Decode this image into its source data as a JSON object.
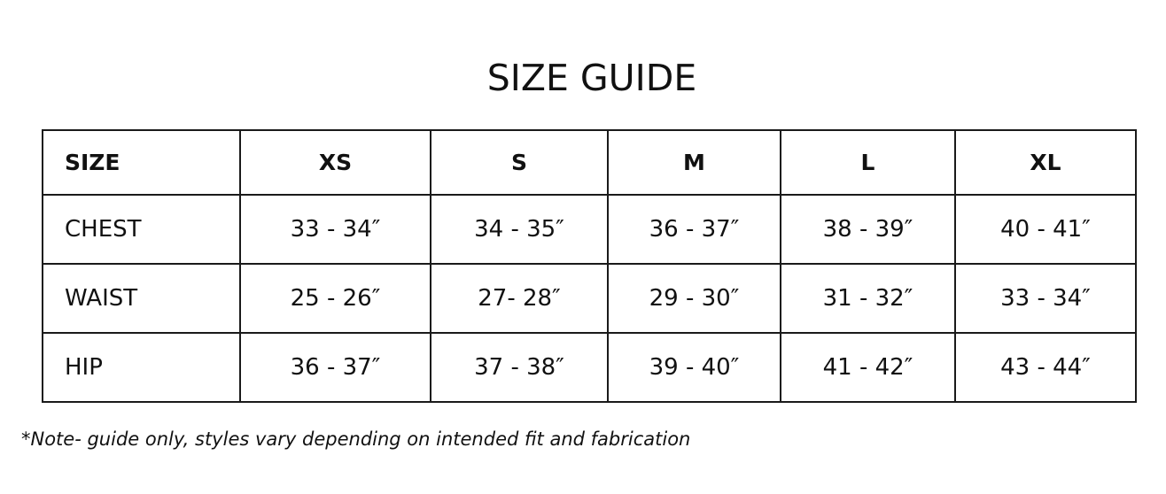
{
  "title": "SIZE GUIDE",
  "table": {
    "headers": [
      "SIZE",
      "XS",
      "S",
      "M",
      "L",
      "XL"
    ],
    "rows": [
      {
        "label": "CHEST",
        "values": [
          "33 - 34″",
          "34 - 35″",
          "36 - 37″",
          "38 - 39″",
          "40 - 41″"
        ]
      },
      {
        "label": "WAIST",
        "values": [
          "25 - 26″",
          "27- 28″",
          "29 - 30″",
          "31 - 32″",
          "33 - 34″"
        ]
      },
      {
        "label": "HIP",
        "values": [
          "36 - 37″",
          "37 - 38″",
          "39 - 40″",
          "41 - 42″",
          "43 - 44″"
        ]
      }
    ]
  },
  "note": "*Note- guide only, styles vary depending on intended fit and fabrication"
}
